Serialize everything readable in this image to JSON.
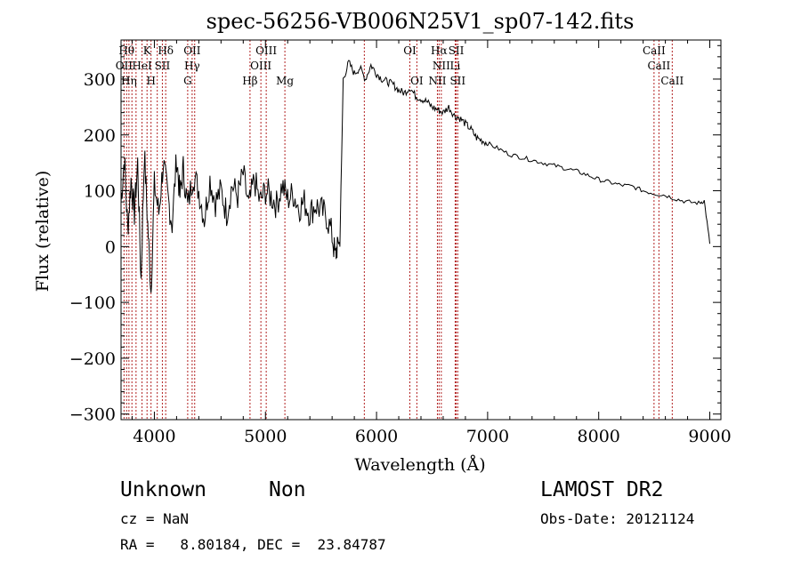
{
  "chart_data": {
    "type": "line",
    "title": "spec-56256-VB006N25V1_sp07-142.fits",
    "xlabel": "Wavelength (Å)",
    "ylabel": "Flux (relative)",
    "xlim": [
      3700,
      9100
    ],
    "ylim": [
      -310,
      370
    ],
    "x_ticks": [
      4000,
      5000,
      6000,
      7000,
      8000,
      9000
    ],
    "x_tick_labels": [
      "4000",
      "5000",
      "6000",
      "7000",
      "8000",
      "9000"
    ],
    "y_ticks": [
      -300,
      -200,
      -100,
      0,
      100,
      200,
      300
    ],
    "y_tick_labels": [
      "−300",
      "−200",
      "−100",
      "0",
      "100",
      "200",
      "300"
    ],
    "grid": false,
    "series": [
      {
        "line_color": "#000000",
        "x": [
          3700,
          3730,
          3760,
          3790,
          3820,
          3850,
          3880,
          3910,
          3940,
          3970,
          4000,
          4040,
          4080,
          4120,
          4160,
          4200,
          4230,
          4260,
          4300,
          4350,
          4400,
          4450,
          4500,
          4550,
          4600,
          4650,
          4700,
          4750,
          4800,
          4850,
          4900,
          4950,
          5000,
          5050,
          5100,
          5150,
          5200,
          5250,
          5300,
          5350,
          5400,
          5450,
          5500,
          5550,
          5600,
          5630,
          5650,
          5670,
          5700,
          5750,
          5800,
          5850,
          5900,
          5950,
          6000,
          6050,
          6100,
          6150,
          6200,
          6250,
          6300,
          6350,
          6400,
          6450,
          6500,
          6550,
          6600,
          6650,
          6700,
          6750,
          6800,
          6850,
          6900,
          6950,
          7000,
          7100,
          7200,
          7300,
          7400,
          7500,
          7600,
          7700,
          7800,
          7900,
          8000,
          8100,
          8200,
          8300,
          8400,
          8500,
          8600,
          8700,
          8800,
          8900,
          8950,
          9000
        ],
        "y": [
          80,
          160,
          30,
          120,
          60,
          150,
          -60,
          170,
          40,
          -80,
          110,
          60,
          150,
          90,
          40,
          160,
          90,
          140,
          70,
          130,
          100,
          50,
          120,
          80,
          100,
          60,
          110,
          90,
          130,
          70,
          120,
          80,
          100,
          90,
          75,
          110,
          85,
          95,
          70,
          80,
          60,
          75,
          65,
          55,
          20,
          -20,
          10,
          5,
          300,
          330,
          310,
          320,
          300,
          325,
          310,
          300,
          295,
          290,
          280,
          275,
          285,
          270,
          265,
          260,
          250,
          245,
          240,
          250,
          235,
          230,
          220,
          210,
          195,
          190,
          185,
          175,
          165,
          160,
          155,
          150,
          145,
          140,
          135,
          128,
          120,
          115,
          110,
          108,
          100,
          95,
          92,
          85,
          80,
          78,
          82,
          5
        ]
      }
    ],
    "line_markers": {
      "color": "#b22222",
      "wavelengths": [
        3727,
        3750,
        3771,
        3798,
        3835,
        3889,
        3934,
        3970,
        4026,
        4072,
        4102,
        4300,
        4340,
        4363,
        4861,
        4959,
        5007,
        5175,
        5890,
        6300,
        6363,
        6548,
        6563,
        6583,
        6708,
        6717,
        6731,
        8498,
        8542,
        8662
      ]
    },
    "line_labels": [
      {
        "text": "Hθ",
        "row": 1
      },
      {
        "text": "K",
        "row": 1
      },
      {
        "text": "Hδ",
        "row": 1
      },
      {
        "text": "OII",
        "row": 1
      },
      {
        "text": "OIII",
        "row": 1
      },
      {
        "text": "OI",
        "row": 1
      },
      {
        "text": "Hα",
        "row": 1
      },
      {
        "text": "SII",
        "row": 1
      },
      {
        "text": "CaII",
        "row": 1
      },
      {
        "text": "OII",
        "row": 2
      },
      {
        "text": "HeI",
        "row": 2
      },
      {
        "text": "SII",
        "row": 2
      },
      {
        "text": "Hγ",
        "row": 2
      },
      {
        "text": "OIII",
        "row": 2
      },
      {
        "text": "NII",
        "row": 2
      },
      {
        "text": "Li",
        "row": 2
      },
      {
        "text": "CaII",
        "row": 2
      },
      {
        "text": "Hη",
        "row": 3
      },
      {
        "text": "H",
        "row": 3
      },
      {
        "text": "G",
        "row": 3
      },
      {
        "text": "Hβ",
        "row": 3
      },
      {
        "text": "Mg",
        "row": 3
      },
      {
        "text": "OI",
        "row": 3
      },
      {
        "text": "NII",
        "row": 3
      },
      {
        "text": "SII",
        "row": 3
      },
      {
        "text": "CaII",
        "row": 3
      }
    ]
  },
  "info": {
    "object_class": "Unknown",
    "subclass": "Non",
    "survey": "LAMOST DR2",
    "redshift_text": "cz = NaN",
    "obs_date_text": "Obs-Date: 20121124",
    "coords_text": "RA =   8.80184, DEC =  23.84787"
  }
}
